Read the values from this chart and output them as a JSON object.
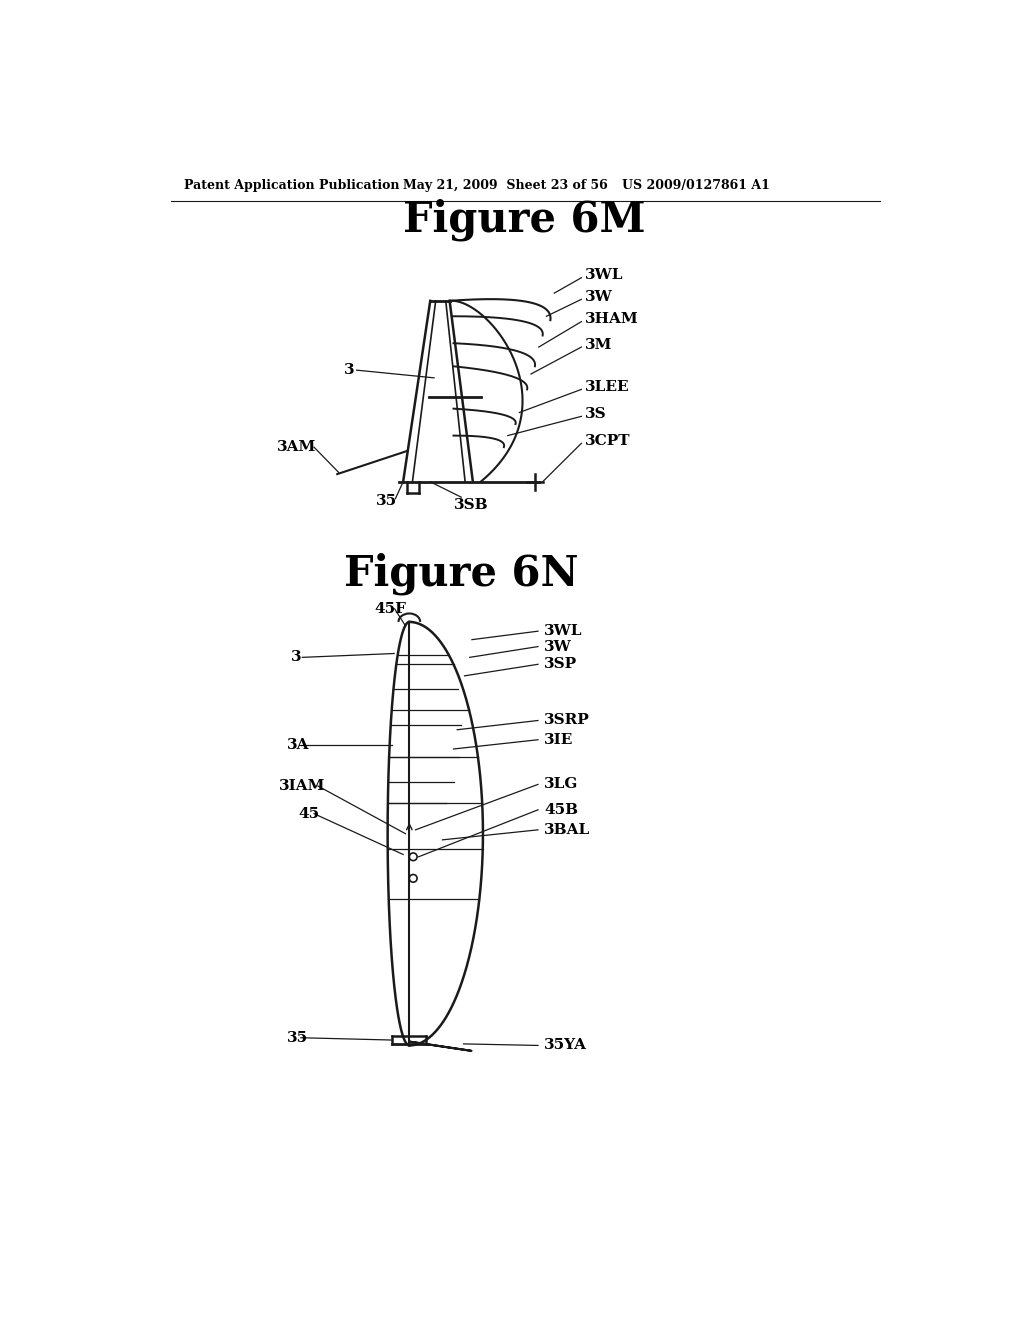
{
  "bg_color": "#ffffff",
  "header_text": "Patent Application Publication",
  "header_date": "May 21, 2009  Sheet 23 of 56",
  "header_patent": "US 2009/0127861 A1",
  "fig6m_title": "Figure 6M",
  "fig6n_title": "Figure 6N",
  "line_color": "#1a1a1a",
  "text_color": "#000000"
}
